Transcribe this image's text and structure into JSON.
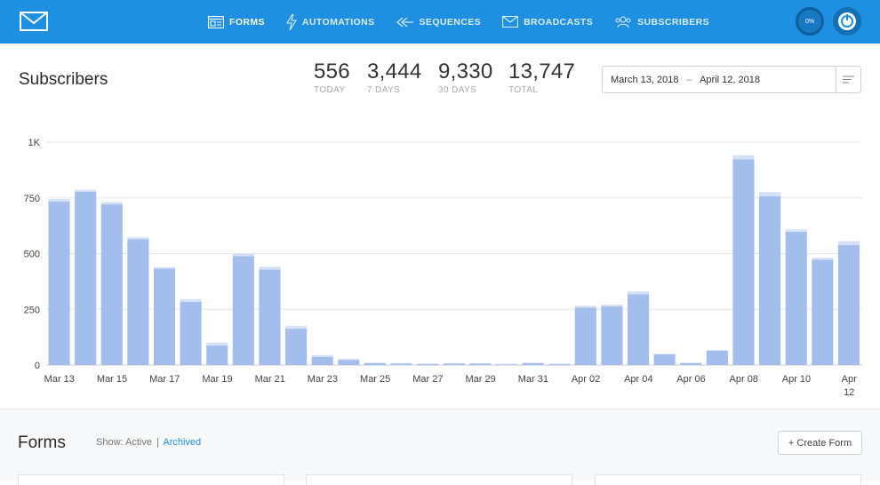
{
  "nav": {
    "items": [
      {
        "label": "FORMS",
        "icon": "forms-icon",
        "active": true
      },
      {
        "label": "AUTOMATIONS",
        "icon": "lightning-icon",
        "active": false
      },
      {
        "label": "SEQUENCES",
        "icon": "sequences-icon",
        "active": false
      },
      {
        "label": "BROADCASTS",
        "icon": "envelope-icon",
        "active": false
      },
      {
        "label": "SUBSCRIBERS",
        "icon": "people-icon",
        "active": false
      }
    ],
    "progress": "0%"
  },
  "header": {
    "title": "Subscribers",
    "stats": [
      {
        "value": "556",
        "label": "TODAY"
      },
      {
        "value": "3,444",
        "label": "7 DAYS"
      },
      {
        "value": "9,330",
        "label": "30 DAYS"
      },
      {
        "value": "13,747",
        "label": "TOTAL"
      }
    ],
    "date_range": {
      "start": "March 13, 2018",
      "separator": "–",
      "end": "April 12, 2018"
    }
  },
  "chart_data": {
    "type": "bar",
    "stacked": true,
    "ylim": [
      0,
      1000
    ],
    "yticks": [
      {
        "value": 0,
        "label": "0"
      },
      {
        "value": 250,
        "label": "250"
      },
      {
        "value": 500,
        "label": "500"
      },
      {
        "value": 750,
        "label": "750"
      },
      {
        "value": 1000,
        "label": "1K"
      }
    ],
    "grid": true,
    "categories": [
      "Mar 13",
      "Mar 14",
      "Mar 15",
      "Mar 16",
      "Mar 17",
      "Mar 18",
      "Mar 19",
      "Mar 20",
      "Mar 21",
      "Mar 22",
      "Mar 23",
      "Mar 24",
      "Mar 25",
      "Mar 26",
      "Mar 27",
      "Mar 28",
      "Mar 29",
      "Mar 30",
      "Mar 31",
      "Apr 01",
      "Apr 02",
      "Apr 03",
      "Apr 04",
      "Apr 05",
      "Apr 06",
      "Apr 07",
      "Apr 08",
      "Apr 09",
      "Apr 10",
      "Apr 11",
      "Apr 12"
    ],
    "xtick_labels": [
      {
        "index": 0,
        "label": "Mar 13"
      },
      {
        "index": 2,
        "label": "Mar 15"
      },
      {
        "index": 4,
        "label": "Mar 17"
      },
      {
        "index": 6,
        "label": "Mar 19"
      },
      {
        "index": 8,
        "label": "Mar 21"
      },
      {
        "index": 10,
        "label": "Mar 23"
      },
      {
        "index": 12,
        "label": "Mar 25"
      },
      {
        "index": 14,
        "label": "Mar 27"
      },
      {
        "index": 16,
        "label": "Mar 29"
      },
      {
        "index": 18,
        "label": "Mar 31"
      },
      {
        "index": 20,
        "label": "Apr 02"
      },
      {
        "index": 22,
        "label": "Apr 04"
      },
      {
        "index": 24,
        "label": "Apr 06"
      },
      {
        "index": 26,
        "label": "Apr 08"
      },
      {
        "index": 28,
        "label": "Apr 10"
      },
      {
        "index": 30,
        "label": "Apr\n12"
      }
    ],
    "series": [
      {
        "color": "#a3bdec",
        "values": [
          733,
          778,
          721,
          565,
          433,
          283,
          88,
          488,
          428,
          163,
          37,
          23,
          8,
          6,
          5,
          6,
          6,
          3,
          8,
          4,
          258,
          263,
          318,
          48,
          9,
          65,
          923,
          758,
          598,
          473,
          538
        ]
      },
      {
        "color": "#d3e0f5",
        "values": [
          12,
          8,
          10,
          8,
          6,
          13,
          13,
          12,
          13,
          12,
          8,
          5,
          3,
          3,
          2,
          3,
          2,
          3,
          3,
          2,
          8,
          8,
          13,
          2,
          2,
          2,
          18,
          18,
          10,
          8,
          18
        ]
      }
    ]
  },
  "forms_section": {
    "title": "Forms",
    "show_label": "Show:",
    "active_label": "Active",
    "divider": "|",
    "archived_label": "Archived",
    "create_button": "+ Create Form"
  }
}
